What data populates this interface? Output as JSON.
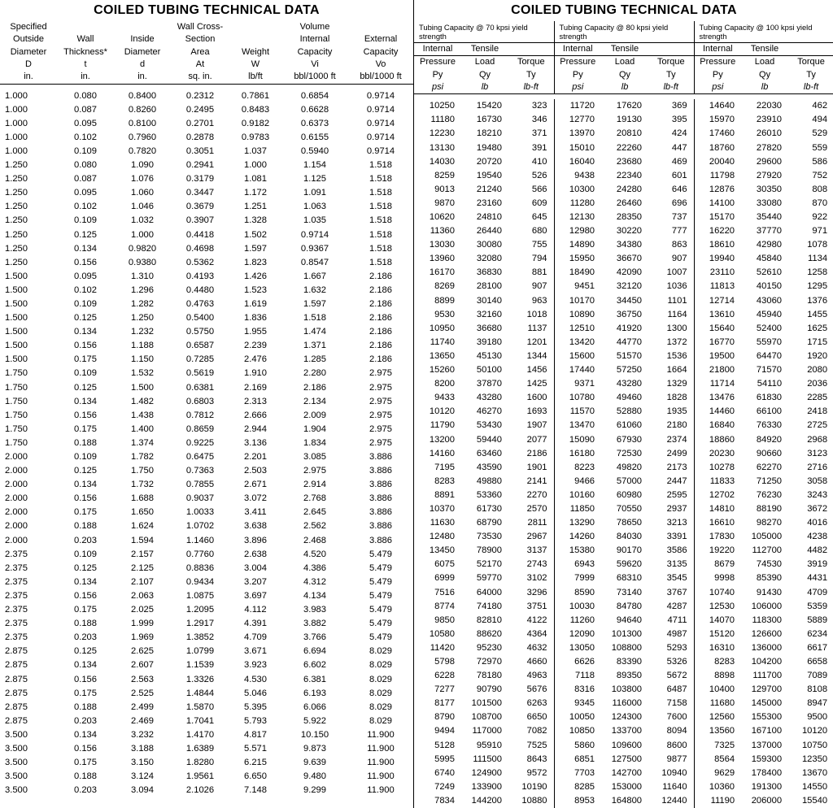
{
  "titles": {
    "left": "COILED TUBING TECHNICAL DATA",
    "right": "COILED TUBING TECHNICAL DATA"
  },
  "leftHeaders": {
    "c0": {
      "l1": "Specified",
      "l2": "Outside",
      "l3": "Diameter",
      "sym": "D",
      "unit": "in."
    },
    "c1": {
      "l1": "",
      "l2": "Wall",
      "l3": "Thickness*",
      "sym": "t",
      "unit": "in."
    },
    "c2": {
      "l1": "",
      "l2": "Inside",
      "l3": "Diameter",
      "sym": "d",
      "unit": "in."
    },
    "c3": {
      "l1": "Wall Cross-",
      "l2": "Section",
      "l3": "Area",
      "sym": "At",
      "unit": "sq. in."
    },
    "c4": {
      "l1": "",
      "l2": "",
      "l3": "Weight",
      "sym": "W",
      "unit": "lb/ft"
    },
    "c5": {
      "l1": "Volume",
      "l2": "Internal",
      "l3": "Capacity",
      "sym": "Vi",
      "unit": "bbl/1000 ft"
    },
    "c6": {
      "l1": "",
      "l2": "External",
      "l3": "Capacity",
      "sym": "Vo",
      "unit": "bbl/1000 ft"
    }
  },
  "rightGroups": {
    "g70": "Tubing Capacity @ 70 kpsi yield strength",
    "g80": "Tubing Capacity @ 80 kpsi yield strength",
    "g100": "Tubing Capacity @ 100 kpsi yield strength"
  },
  "rightSub": {
    "ip": {
      "l1": "Internal",
      "l2": "Pressure",
      "sym": "Py",
      "unit": "psi"
    },
    "tl": {
      "l1": "Tensile",
      "l2": "Load",
      "sym": "Qy",
      "unit": "lb"
    },
    "tq": {
      "l1": "",
      "l2": "Torque",
      "sym": "Ty",
      "unit": "lb-ft"
    }
  },
  "leftCols": [
    70,
    70,
    70,
    72,
    64,
    82,
    80
  ],
  "rightCols": [
    58,
    58,
    56,
    58,
    58,
    56,
    58,
    58,
    56
  ],
  "rows": [
    {
      "L": [
        "1.000",
        "0.080",
        "0.8400",
        "0.2312",
        "0.7861",
        "0.6854",
        "0.9714"
      ],
      "R": [
        "10250",
        "15420",
        "323",
        "11720",
        "17620",
        "369",
        "14640",
        "22030",
        "462"
      ]
    },
    {
      "L": [
        "1.000",
        "0.087",
        "0.8260",
        "0.2495",
        "0.8483",
        "0.6628",
        "0.9714"
      ],
      "R": [
        "11180",
        "16730",
        "346",
        "12770",
        "19130",
        "395",
        "15970",
        "23910",
        "494"
      ]
    },
    {
      "L": [
        "1.000",
        "0.095",
        "0.8100",
        "0.2701",
        "0.9182",
        "0.6373",
        "0.9714"
      ],
      "R": [
        "12230",
        "18210",
        "371",
        "13970",
        "20810",
        "424",
        "17460",
        "26010",
        "529"
      ]
    },
    {
      "L": [
        "1.000",
        "0.102",
        "0.7960",
        "0.2878",
        "0.9783",
        "0.6155",
        "0.9714"
      ],
      "R": [
        "13130",
        "19480",
        "391",
        "15010",
        "22260",
        "447",
        "18760",
        "27820",
        "559"
      ]
    },
    {
      "L": [
        "1.000",
        "0.109",
        "0.7820",
        "0.3051",
        "1.037",
        "0.5940",
        "0.9714"
      ],
      "R": [
        "14030",
        "20720",
        "410",
        "16040",
        "23680",
        "469",
        "20040",
        "29600",
        "586"
      ]
    },
    {
      "L": [
        "1.250",
        "0.080",
        "1.090",
        "0.2941",
        "1.000",
        "1.154",
        "1.518"
      ],
      "R": [
        "8259",
        "19540",
        "526",
        "9438",
        "22340",
        "601",
        "11798",
        "27920",
        "752"
      ]
    },
    {
      "L": [
        "1.250",
        "0.087",
        "1.076",
        "0.3179",
        "1.081",
        "1.125",
        "1.518"
      ],
      "R": [
        "9013",
        "21240",
        "566",
        "10300",
        "24280",
        "646",
        "12876",
        "30350",
        "808"
      ]
    },
    {
      "L": [
        "1.250",
        "0.095",
        "1.060",
        "0.3447",
        "1.172",
        "1.091",
        "1.518"
      ],
      "R": [
        "9870",
        "23160",
        "609",
        "11280",
        "26460",
        "696",
        "14100",
        "33080",
        "870"
      ]
    },
    {
      "L": [
        "1.250",
        "0.102",
        "1.046",
        "0.3679",
        "1.251",
        "1.063",
        "1.518"
      ],
      "R": [
        "10620",
        "24810",
        "645",
        "12130",
        "28350",
        "737",
        "15170",
        "35440",
        "922"
      ]
    },
    {
      "L": [
        "1.250",
        "0.109",
        "1.032",
        "0.3907",
        "1.328",
        "1.035",
        "1.518"
      ],
      "R": [
        "11360",
        "26440",
        "680",
        "12980",
        "30220",
        "777",
        "16220",
        "37770",
        "971"
      ]
    },
    {
      "L": [
        "1.250",
        "0.125",
        "1.000",
        "0.4418",
        "1.502",
        "0.9714",
        "1.518"
      ],
      "R": [
        "13030",
        "30080",
        "755",
        "14890",
        "34380",
        "863",
        "18610",
        "42980",
        "1078"
      ]
    },
    {
      "L": [
        "1.250",
        "0.134",
        "0.9820",
        "0.4698",
        "1.597",
        "0.9367",
        "1.518"
      ],
      "R": [
        "13960",
        "32080",
        "794",
        "15950",
        "36670",
        "907",
        "19940",
        "45840",
        "1134"
      ]
    },
    {
      "L": [
        "1.250",
        "0.156",
        "0.9380",
        "0.5362",
        "1.823",
        "0.8547",
        "1.518"
      ],
      "R": [
        "16170",
        "36830",
        "881",
        "18490",
        "42090",
        "1007",
        "23110",
        "52610",
        "1258"
      ]
    },
    {
      "L": [
        "1.500",
        "0.095",
        "1.310",
        "0.4193",
        "1.426",
        "1.667",
        "2.186"
      ],
      "R": [
        "8269",
        "28100",
        "907",
        "9451",
        "32120",
        "1036",
        "11813",
        "40150",
        "1295"
      ]
    },
    {
      "L": [
        "1.500",
        "0.102",
        "1.296",
        "0.4480",
        "1.523",
        "1.632",
        "2.186"
      ],
      "R": [
        "8899",
        "30140",
        "963",
        "10170",
        "34450",
        "1101",
        "12714",
        "43060",
        "1376"
      ]
    },
    {
      "L": [
        "1.500",
        "0.109",
        "1.282",
        "0.4763",
        "1.619",
        "1.597",
        "2.186"
      ],
      "R": [
        "9530",
        "32160",
        "1018",
        "10890",
        "36750",
        "1164",
        "13610",
        "45940",
        "1455"
      ]
    },
    {
      "L": [
        "1.500",
        "0.125",
        "1.250",
        "0.5400",
        "1.836",
        "1.518",
        "2.186"
      ],
      "R": [
        "10950",
        "36680",
        "1137",
        "12510",
        "41920",
        "1300",
        "15640",
        "52400",
        "1625"
      ]
    },
    {
      "L": [
        "1.500",
        "0.134",
        "1.232",
        "0.5750",
        "1.955",
        "1.474",
        "2.186"
      ],
      "R": [
        "11740",
        "39180",
        "1201",
        "13420",
        "44770",
        "1372",
        "16770",
        "55970",
        "1715"
      ]
    },
    {
      "L": [
        "1.500",
        "0.156",
        "1.188",
        "0.6587",
        "2.239",
        "1.371",
        "2.186"
      ],
      "R": [
        "13650",
        "45130",
        "1344",
        "15600",
        "51570",
        "1536",
        "19500",
        "64470",
        "1920"
      ]
    },
    {
      "L": [
        "1.500",
        "0.175",
        "1.150",
        "0.7285",
        "2.476",
        "1.285",
        "2.186"
      ],
      "R": [
        "15260",
        "50100",
        "1456",
        "17440",
        "57250",
        "1664",
        "21800",
        "71570",
        "2080"
      ]
    },
    {
      "L": [
        "1.750",
        "0.109",
        "1.532",
        "0.5619",
        "1.910",
        "2.280",
        "2.975"
      ],
      "R": [
        "8200",
        "37870",
        "1425",
        "9371",
        "43280",
        "1329",
        "11714",
        "54110",
        "2036"
      ]
    },
    {
      "L": [
        "1.750",
        "0.125",
        "1.500",
        "0.6381",
        "2.169",
        "2.186",
        "2.975"
      ],
      "R": [
        "9433",
        "43280",
        "1600",
        "10780",
        "49460",
        "1828",
        "13476",
        "61830",
        "2285"
      ]
    },
    {
      "L": [
        "1.750",
        "0.134",
        "1.482",
        "0.6803",
        "2.313",
        "2.134",
        "2.975"
      ],
      "R": [
        "10120",
        "46270",
        "1693",
        "11570",
        "52880",
        "1935",
        "14460",
        "66100",
        "2418"
      ]
    },
    {
      "L": [
        "1.750",
        "0.156",
        "1.438",
        "0.7812",
        "2.666",
        "2.009",
        "2.975"
      ],
      "R": [
        "11790",
        "53430",
        "1907",
        "13470",
        "61060",
        "2180",
        "16840",
        "76330",
        "2725"
      ]
    },
    {
      "L": [
        "1.750",
        "0.175",
        "1.400",
        "0.8659",
        "2.944",
        "1.904",
        "2.975"
      ],
      "R": [
        "13200",
        "59440",
        "2077",
        "15090",
        "67930",
        "2374",
        "18860",
        "84920",
        "2968"
      ]
    },
    {
      "L": [
        "1.750",
        "0.188",
        "1.374",
        "0.9225",
        "3.136",
        "1.834",
        "2.975"
      ],
      "R": [
        "14160",
        "63460",
        "2186",
        "16180",
        "72530",
        "2499",
        "20230",
        "90660",
        "3123"
      ]
    },
    {
      "L": [
        "2.000",
        "0.109",
        "1.782",
        "0.6475",
        "2.201",
        "3.085",
        "3.886"
      ],
      "R": [
        "7195",
        "43590",
        "1901",
        "8223",
        "49820",
        "2173",
        "10278",
        "62270",
        "2716"
      ]
    },
    {
      "L": [
        "2.000",
        "0.125",
        "1.750",
        "0.7363",
        "2.503",
        "2.975",
        "3.886"
      ],
      "R": [
        "8283",
        "49880",
        "2141",
        "9466",
        "57000",
        "2447",
        "11833",
        "71250",
        "3058"
      ]
    },
    {
      "L": [
        "2.000",
        "0.134",
        "1.732",
        "0.7855",
        "2.671",
        "2.914",
        "3.886"
      ],
      "R": [
        "8891",
        "53360",
        "2270",
        "10160",
        "60980",
        "2595",
        "12702",
        "76230",
        "3243"
      ]
    },
    {
      "L": [
        "2.000",
        "0.156",
        "1.688",
        "0.9037",
        "3.072",
        "2.768",
        "3.886"
      ],
      "R": [
        "10370",
        "61730",
        "2570",
        "11850",
        "70550",
        "2937",
        "14810",
        "88190",
        "3672"
      ]
    },
    {
      "L": [
        "2.000",
        "0.175",
        "1.650",
        "1.0033",
        "3.411",
        "2.645",
        "3.886"
      ],
      "R": [
        "11630",
        "68790",
        "2811",
        "13290",
        "78650",
        "3213",
        "16610",
        "98270",
        "4016"
      ]
    },
    {
      "L": [
        "2.000",
        "0.188",
        "1.624",
        "1.0702",
        "3.638",
        "2.562",
        "3.886"
      ],
      "R": [
        "12480",
        "73530",
        "2967",
        "14260",
        "84030",
        "3391",
        "17830",
        "105000",
        "4238"
      ]
    },
    {
      "L": [
        "2.000",
        "0.203",
        "1.594",
        "1.1460",
        "3.896",
        "2.468",
        "3.886"
      ],
      "R": [
        "13450",
        "78900",
        "3137",
        "15380",
        "90170",
        "3586",
        "19220",
        "112700",
        "4482"
      ]
    },
    {
      "L": [
        "2.375",
        "0.109",
        "2.157",
        "0.7760",
        "2.638",
        "4.520",
        "5.479"
      ],
      "R": [
        "6075",
        "52170",
        "2743",
        "6943",
        "59620",
        "3135",
        "8679",
        "74530",
        "3919"
      ]
    },
    {
      "L": [
        "2.375",
        "0.125",
        "2.125",
        "0.8836",
        "3.004",
        "4.386",
        "5.479"
      ],
      "R": [
        "6999",
        "59770",
        "3102",
        "7999",
        "68310",
        "3545",
        "9998",
        "85390",
        "4431"
      ]
    },
    {
      "L": [
        "2.375",
        "0.134",
        "2.107",
        "0.9434",
        "3.207",
        "4.312",
        "5.479"
      ],
      "R": [
        "7516",
        "64000",
        "3296",
        "8590",
        "73140",
        "3767",
        "10740",
        "91430",
        "4709"
      ]
    },
    {
      "L": [
        "2.375",
        "0.156",
        "2.063",
        "1.0875",
        "3.697",
        "4.134",
        "5.479"
      ],
      "R": [
        "8774",
        "74180",
        "3751",
        "10030",
        "84780",
        "4287",
        "12530",
        "106000",
        "5359"
      ]
    },
    {
      "L": [
        "2.375",
        "0.175",
        "2.025",
        "1.2095",
        "4.112",
        "3.983",
        "5.479"
      ],
      "R": [
        "9850",
        "82810",
        "4122",
        "11260",
        "94640",
        "4711",
        "14070",
        "118300",
        "5889"
      ]
    },
    {
      "L": [
        "2.375",
        "0.188",
        "1.999",
        "1.2917",
        "4.391",
        "3.882",
        "5.479"
      ],
      "R": [
        "10580",
        "88620",
        "4364",
        "12090",
        "101300",
        "4987",
        "15120",
        "126600",
        "6234"
      ]
    },
    {
      "L": [
        "2.375",
        "0.203",
        "1.969",
        "1.3852",
        "4.709",
        "3.766",
        "5.479"
      ],
      "R": [
        "11420",
        "95230",
        "4632",
        "13050",
        "108800",
        "5293",
        "16310",
        "136000",
        "6617"
      ]
    },
    {
      "L": [
        "2.875",
        "0.125",
        "2.625",
        "1.0799",
        "3.671",
        "6.694",
        "8.029"
      ],
      "R": [
        "5798",
        "72970",
        "4660",
        "6626",
        "83390",
        "5326",
        "8283",
        "104200",
        "6658"
      ]
    },
    {
      "L": [
        "2.875",
        "0.134",
        "2.607",
        "1.1539",
        "3.923",
        "6.602",
        "8.029"
      ],
      "R": [
        "6228",
        "78180",
        "4963",
        "7118",
        "89350",
        "5672",
        "8898",
        "111700",
        "7089"
      ]
    },
    {
      "L": [
        "2.875",
        "0.156",
        "2.563",
        "1.3326",
        "4.530",
        "6.381",
        "8.029"
      ],
      "R": [
        "7277",
        "90790",
        "5676",
        "8316",
        "103800",
        "6487",
        "10400",
        "129700",
        "8108"
      ]
    },
    {
      "L": [
        "2.875",
        "0.175",
        "2.525",
        "1.4844",
        "5.046",
        "6.193",
        "8.029"
      ],
      "R": [
        "8177",
        "101500",
        "6263",
        "9345",
        "116000",
        "7158",
        "11680",
        "145000",
        "8947"
      ]
    },
    {
      "L": [
        "2.875",
        "0.188",
        "2.499",
        "1.5870",
        "5.395",
        "6.066",
        "8.029"
      ],
      "R": [
        "8790",
        "108700",
        "6650",
        "10050",
        "124300",
        "7600",
        "12560",
        "155300",
        "9500"
      ]
    },
    {
      "L": [
        "2.875",
        "0.203",
        "2.469",
        "1.7041",
        "5.793",
        "5.922",
        "8.029"
      ],
      "R": [
        "9494",
        "117000",
        "7082",
        "10850",
        "133700",
        "8094",
        "13560",
        "167100",
        "10120"
      ]
    },
    {
      "L": [
        "3.500",
        "0.134",
        "3.232",
        "1.4170",
        "4.817",
        "10.150",
        "11.900"
      ],
      "R": [
        "5128",
        "95910",
        "7525",
        "5860",
        "109600",
        "8600",
        "7325",
        "137000",
        "10750"
      ]
    },
    {
      "L": [
        "3.500",
        "0.156",
        "3.188",
        "1.6389",
        "5.571",
        "9.873",
        "11.900"
      ],
      "R": [
        "5995",
        "111500",
        "8643",
        "6851",
        "127500",
        "9877",
        "8564",
        "159300",
        "12350"
      ]
    },
    {
      "L": [
        "3.500",
        "0.175",
        "3.150",
        "1.8280",
        "6.215",
        "9.639",
        "11.900"
      ],
      "R": [
        "6740",
        "124900",
        "9572",
        "7703",
        "142700",
        "10940",
        "9629",
        "178400",
        "13670"
      ]
    },
    {
      "L": [
        "3.500",
        "0.188",
        "3.124",
        "1.9561",
        "6.650",
        "9.480",
        "11.900"
      ],
      "R": [
        "7249",
        "133900",
        "10190",
        "8285",
        "153000",
        "11640",
        "10360",
        "191300",
        "14550"
      ]
    },
    {
      "L": [
        "3.500",
        "0.203",
        "3.094",
        "2.1026",
        "7.148",
        "9.299",
        "11.900"
      ],
      "R": [
        "7834",
        "144200",
        "10880",
        "8953",
        "164800",
        "12440",
        "11190",
        "206000",
        "15540"
      ]
    }
  ]
}
